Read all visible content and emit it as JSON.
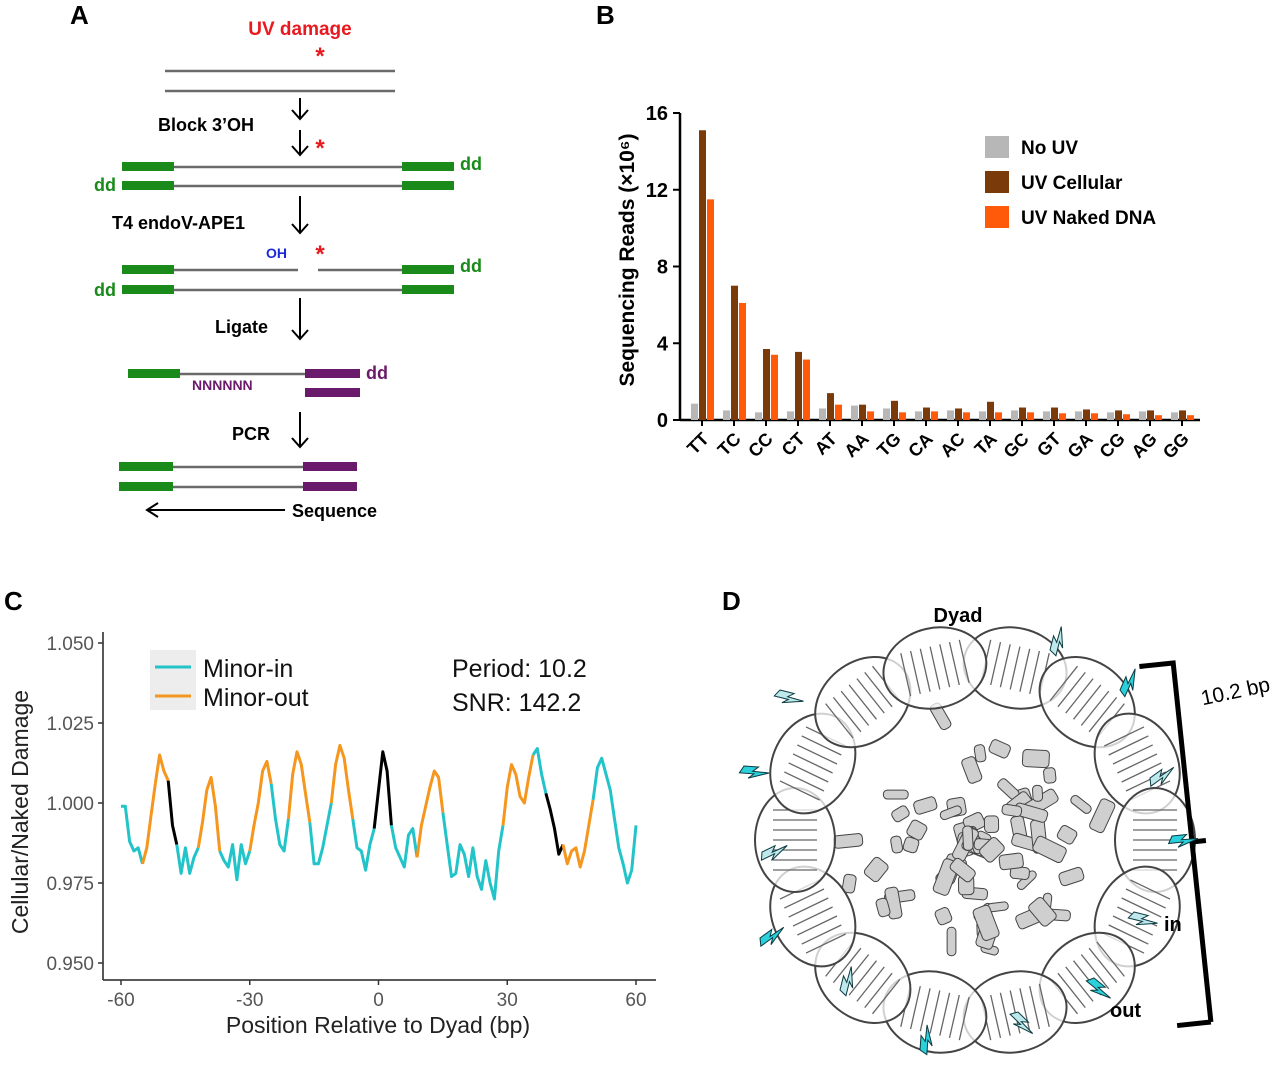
{
  "panels": {
    "a": "A",
    "b": "B",
    "c": "C",
    "d": "D"
  },
  "panel_a": {
    "uv_damage": "UV damage",
    "star": "*",
    "steps": [
      "Block 3’OH",
      "T4 endoV-APE1",
      "Ligate",
      "PCR"
    ],
    "dd": "dd",
    "oh": "OH",
    "nnnnnn": "NNNNNN",
    "sequence": "Sequence",
    "colors": {
      "green": "#1a8a1a",
      "purple": "#6a1a6a",
      "red": "#e8191f",
      "blue": "#1a2ad8"
    }
  },
  "chart_data": [
    {
      "type": "bar",
      "categories": [
        "TT",
        "TC",
        "CC",
        "CT",
        "AT",
        "AA",
        "TG",
        "CA",
        "AC",
        "TA",
        "GC",
        "GT",
        "GA",
        "CG",
        "AG",
        "GG"
      ],
      "series": [
        {
          "name": "No UV",
          "color": "#b7b7b7",
          "values": [
            0.85,
            0.5,
            0.4,
            0.45,
            0.6,
            0.75,
            0.6,
            0.45,
            0.5,
            0.45,
            0.5,
            0.45,
            0.45,
            0.4,
            0.45,
            0.4
          ]
        },
        {
          "name": "UV Cellular",
          "color": "#7a3a0a",
          "values": [
            15.1,
            7.0,
            3.7,
            3.55,
            1.4,
            0.8,
            1.0,
            0.65,
            0.6,
            0.95,
            0.65,
            0.65,
            0.55,
            0.5,
            0.5,
            0.5
          ]
        },
        {
          "name": "UV Naked DNA",
          "color": "#ff5a0a",
          "values": [
            11.5,
            6.1,
            3.4,
            3.15,
            0.8,
            0.45,
            0.4,
            0.45,
            0.4,
            0.4,
            0.4,
            0.35,
            0.35,
            0.3,
            0.25,
            0.25
          ]
        }
      ],
      "ylabel": "Sequencing Reads (×10⁶)",
      "yticks": [
        "0",
        "4",
        "8",
        "12",
        "16"
      ],
      "ylim": [
        0,
        16
      ],
      "legend": "top-right"
    },
    {
      "type": "line",
      "xlabel": "Position Relative to Dyad (bp)",
      "ylabel": "Cellular/Naked Damage",
      "xticks": [
        "-60",
        "-30",
        "0",
        "30",
        "60"
      ],
      "yticks": [
        "0.950",
        "0.975",
        "1.000",
        "1.025",
        "1.050"
      ],
      "xlim": [
        -60,
        60
      ],
      "ylim": [
        0.95,
        1.05
      ],
      "series": [
        {
          "name": "Minor-in",
          "color": "#22c4c9"
        },
        {
          "name": "Minor-out",
          "color": "#f5961e"
        }
      ],
      "annotation": {
        "period": "Period: 10.2",
        "snr": "SNR: 142.2"
      },
      "x": [
        -60,
        -59,
        -58,
        -57,
        -56,
        -55,
        -54,
        -53,
        -52,
        -51,
        -50,
        -49,
        -48,
        -47,
        -46,
        -45,
        -44,
        -43,
        -42,
        -41,
        -40,
        -39,
        -38,
        -37,
        -36,
        -35,
        -34,
        -33,
        -32,
        -31,
        -30,
        -29,
        -28,
        -27,
        -26,
        -25,
        -24,
        -23,
        -22,
        -21,
        -20,
        -19,
        -18,
        -17,
        -16,
        -15,
        -14,
        -13,
        -12,
        -11,
        -10,
        -9,
        -8,
        -7,
        -6,
        -5,
        -4,
        -3,
        -2,
        -1,
        0,
        1,
        2,
        3,
        4,
        5,
        6,
        7,
        8,
        9,
        10,
        11,
        12,
        13,
        14,
        15,
        16,
        17,
        18,
        19,
        20,
        21,
        22,
        23,
        24,
        25,
        26,
        27,
        28,
        29,
        30,
        31,
        32,
        33,
        34,
        35,
        36,
        37,
        38,
        39,
        40,
        41,
        42,
        43,
        44,
        45,
        46,
        47,
        48,
        49,
        50,
        51,
        52,
        53,
        54,
        55,
        56,
        57,
        58,
        59,
        60
      ],
      "y": [
        0.999,
        0.999,
        0.988,
        0.985,
        0.986,
        0.981,
        0.986,
        0.996,
        1.006,
        1.015,
        1.01,
        1.007,
        0.993,
        0.987,
        0.978,
        0.986,
        0.978,
        0.983,
        0.986,
        0.994,
        1.004,
        1.008,
        0.999,
        0.985,
        0.982,
        0.98,
        0.987,
        0.976,
        0.987,
        0.981,
        0.985,
        0.993,
        1.0,
        1.01,
        1.013,
        1.006,
        0.995,
        0.987,
        0.985,
        0.995,
        1.009,
        1.016,
        1.012,
        1.003,
        0.994,
        0.981,
        0.981,
        0.986,
        0.993,
        1.0,
        1.012,
        1.018,
        1.014,
        1.004,
        0.995,
        0.986,
        0.985,
        0.979,
        0.987,
        0.992,
        1.004,
        1.016,
        1.01,
        0.993,
        0.986,
        0.983,
        0.98,
        0.99,
        0.992,
        0.983,
        0.993,
        0.999,
        1.005,
        1.01,
        1.008,
        0.997,
        0.987,
        0.977,
        0.978,
        0.987,
        0.984,
        0.977,
        0.986,
        0.977,
        0.973,
        0.982,
        0.975,
        0.97,
        0.985,
        0.993,
        1.005,
        1.012,
        1.009,
        1.002,
        1.0,
        1.008,
        1.015,
        1.017,
        1.009,
        1.003,
        0.998,
        0.992,
        0.984,
        0.987,
        0.981,
        0.985,
        0.986,
        0.98,
        0.985,
        0.993,
        1.001,
        1.011,
        1.014,
        1.009,
        1.004,
        0.995,
        0.986,
        0.981,
        0.975,
        0.979,
        0.993
      ],
      "segments": [
        {
          "from": -60,
          "to": -55,
          "series": "Minor-in"
        },
        {
          "from": -55,
          "to": -52,
          "series": "Minor-out"
        },
        {
          "from": -52,
          "to": -49,
          "series": "Minor-out"
        },
        {
          "from": -49,
          "to": -47,
          "series": "none"
        },
        {
          "from": -47,
          "to": -42,
          "series": "Minor-in"
        },
        {
          "from": -42,
          "to": -37,
          "series": "Minor-out"
        },
        {
          "from": -37,
          "to": -30,
          "series": "Minor-in"
        },
        {
          "from": -30,
          "to": -25,
          "series": "Minor-out"
        },
        {
          "from": -25,
          "to": -21,
          "series": "Minor-in"
        },
        {
          "from": -21,
          "to": -16,
          "series": "Minor-out"
        },
        {
          "from": -16,
          "to": -11,
          "series": "Minor-in"
        },
        {
          "from": -11,
          "to": -6,
          "series": "Minor-out"
        },
        {
          "from": -6,
          "to": -1,
          "series": "Minor-in"
        },
        {
          "from": -1,
          "to": 3,
          "series": "none"
        },
        {
          "from": 3,
          "to": 9,
          "series": "Minor-in"
        },
        {
          "from": 9,
          "to": 15,
          "series": "Minor-out"
        },
        {
          "from": 15,
          "to": 29,
          "series": "Minor-in"
        },
        {
          "from": 29,
          "to": 36,
          "series": "Minor-out"
        },
        {
          "from": 36,
          "to": 39,
          "series": "Minor-in"
        },
        {
          "from": 39,
          "to": 43,
          "series": "none"
        },
        {
          "from": 43,
          "to": 50,
          "series": "Minor-out"
        },
        {
          "from": 50,
          "to": 60,
          "series": "Minor-in"
        }
      ]
    }
  ],
  "panel_d": {
    "dyad": "Dyad",
    "bp": "10.2 bp",
    "in": "in",
    "out": "out",
    "colors": {
      "bolt_dark": "#2bd0da",
      "bolt_light": "#bfe8ec"
    }
  }
}
